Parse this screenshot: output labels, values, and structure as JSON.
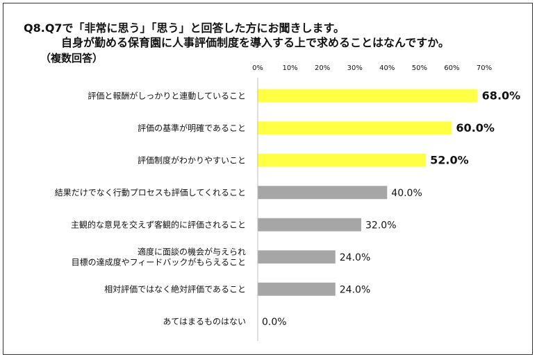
{
  "title": {
    "line1": "Q8.Q7で「非常に思う」「思う」と回答した方にお聞きします。",
    "line2": "自身が勤める保育園に人事評価制度を導入する上で求めることはなんですか。",
    "line3": "（複数回答）"
  },
  "chart_data": {
    "type": "bar",
    "orientation": "horizontal",
    "xlim": [
      0,
      70
    ],
    "ticks": [
      "0%",
      "10%",
      "20%",
      "30%",
      "40%",
      "50%",
      "60%",
      "70%"
    ],
    "tick_values": [
      0,
      10,
      20,
      30,
      40,
      50,
      60,
      70
    ],
    "categories": [
      [
        "評価と報酬がしっかりと連動していること"
      ],
      [
        "評価の基準が明確であること"
      ],
      [
        "評価制度がわかりやすいこと"
      ],
      [
        "結果だけでなく行動プロセスも評価してくれること"
      ],
      [
        "主観的な意見を交えず客観的に評価されること"
      ],
      [
        "適度に面談の機会が与えられ",
        "目標の達成度やフィードバックがもらえること"
      ],
      [
        "相対評価ではなく絶対評価であること"
      ],
      [
        "あてはまるものはない"
      ]
    ],
    "values": [
      68.0,
      60.0,
      52.0,
      40.0,
      32.0,
      24.0,
      24.0,
      0.0
    ],
    "value_labels": [
      "68.0%",
      "60.0%",
      "52.0%",
      "40.0%",
      "32.0%",
      "24.0%",
      "24.0%",
      "0.0%"
    ],
    "highlight": [
      true,
      true,
      true,
      false,
      false,
      false,
      false,
      false
    ],
    "colors": {
      "highlight": "#FFFF44",
      "normal": "#A6A6A6",
      "axis": "#BFBFBF"
    },
    "legend": "none",
    "grid": false
  }
}
